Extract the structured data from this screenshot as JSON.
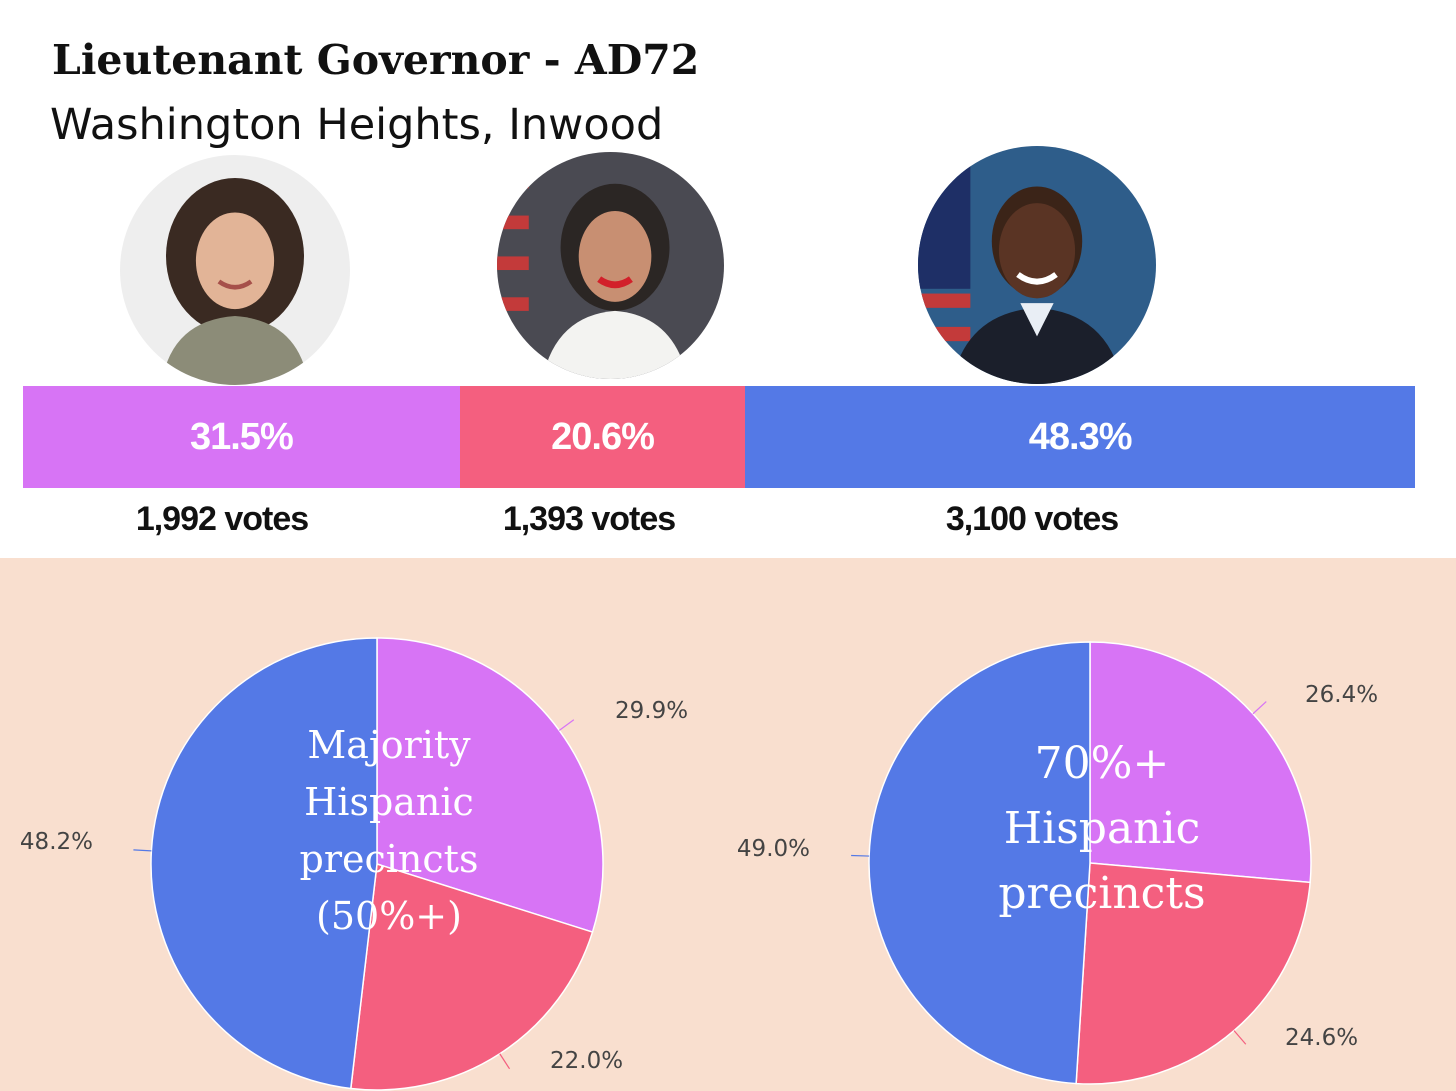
{
  "title": "Lieutenant Governor - AD72",
  "subtitle": "Washington Heights, Inwood",
  "colors": {
    "purple": "#d774f5",
    "pink": "#f45f7f",
    "blue": "#5479e6",
    "background": "#f9dfcf"
  },
  "candidates": [
    {
      "photo": "candidate-1-photo",
      "percent": "31.5%",
      "votes": "1,992 votes",
      "color": "#d774f5",
      "share": 31.5
    },
    {
      "photo": "candidate-2-photo",
      "percent": "20.6%",
      "votes": "1,393 votes",
      "color": "#f45f7f",
      "share": 20.6
    },
    {
      "photo": "candidate-3-photo",
      "percent": "48.3%",
      "votes": "3,100 votes",
      "color": "#5479e6",
      "share": 48.3
    }
  ],
  "chart_data": [
    {
      "type": "pie",
      "title_lines": [
        "Majority",
        "Hispanic",
        "precincts",
        "(50%+)"
      ],
      "slices": [
        {
          "value": 29.9,
          "label": "29.9%",
          "color": "#d774f5"
        },
        {
          "value": 22.0,
          "label": "22.0%",
          "color": "#f45f7f"
        },
        {
          "value": 48.2,
          "label": "48.2%",
          "color": "#5479e6"
        }
      ]
    },
    {
      "type": "pie",
      "title_lines": [
        "70%+",
        "Hispanic",
        "precincts"
      ],
      "slices": [
        {
          "value": 26.4,
          "label": "26.4%",
          "color": "#d774f5"
        },
        {
          "value": 24.6,
          "label": "24.6%",
          "color": "#f45f7f"
        },
        {
          "value": 49.0,
          "label": "49.0%",
          "color": "#5479e6"
        }
      ]
    }
  ]
}
